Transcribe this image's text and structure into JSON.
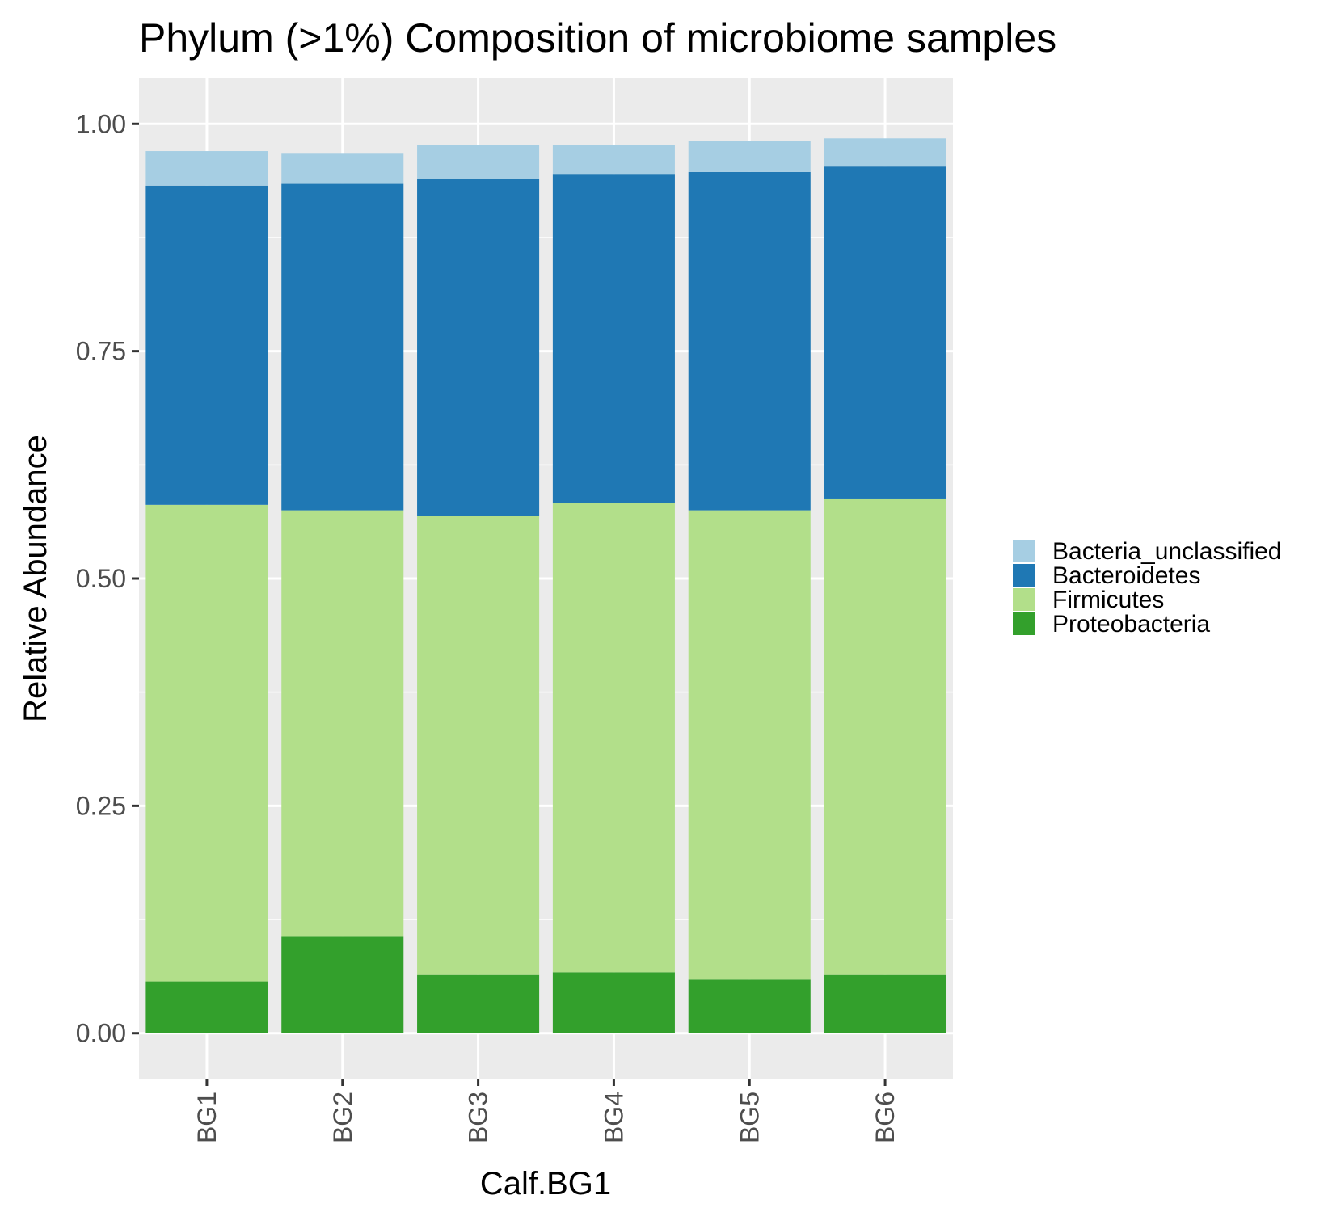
{
  "chart_data": {
    "type": "bar",
    "stacked": true,
    "title": "Phylum (>1%) Composition of microbiome samples",
    "xlabel": "Calf.BG1",
    "ylabel": "Relative Abundance",
    "categories": [
      "BG1",
      "BG2",
      "BG3",
      "BG4",
      "BG5",
      "BG6"
    ],
    "ylim": [
      -0.05,
      1.05
    ],
    "yticks": [
      "0.00",
      "0.25",
      "0.50",
      "0.75",
      "1.00"
    ],
    "grid": true,
    "legend_position": "right",
    "series": [
      {
        "name": "Proteobacteria",
        "color": "#33a02c",
        "values": [
          0.057,
          0.106,
          0.064,
          0.067,
          0.059,
          0.064
        ]
      },
      {
        "name": "Firmicutes",
        "color": "#b2df8a",
        "values": [
          0.524,
          0.469,
          0.505,
          0.516,
          0.516,
          0.524
        ]
      },
      {
        "name": "Bacteroidetes",
        "color": "#1f78b4",
        "values": [
          0.351,
          0.359,
          0.37,
          0.362,
          0.372,
          0.365
        ]
      },
      {
        "name": "Bacteria_unclassified",
        "color": "#a6cee3",
        "values": [
          0.038,
          0.034,
          0.038,
          0.032,
          0.034,
          0.031
        ]
      }
    ],
    "legend_order": [
      "Bacteria_unclassified",
      "Bacteroidetes",
      "Firmicutes",
      "Proteobacteria"
    ]
  }
}
